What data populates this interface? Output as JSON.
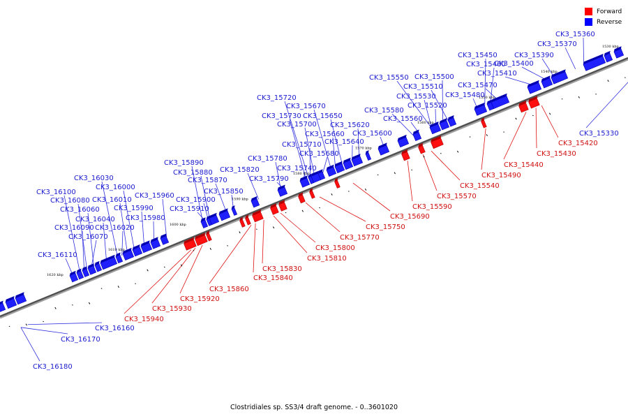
{
  "legend": {
    "forward_label": "Forward",
    "reverse_label": "Reverse",
    "forward_color": "#ff0000",
    "reverse_color": "#0000ff"
  },
  "caption": "Clostridiales sp. SS3/4 draft genome. - 0..3601020",
  "axis_units": "kbp",
  "axis_range_kbp": [
    1530,
    1620
  ],
  "axis_ticks": [
    "1530 kbp",
    "1540 kbp",
    "1550 kbp",
    "1560 kbp",
    "1570 kbp",
    "1580 kbp",
    "1590 kbp",
    "1600 kbp",
    "1610 kbp",
    "1620 kbp"
  ],
  "reverse_genes": [
    "CK3_15360",
    "CK3_15370",
    "CK3_15390",
    "CK3_15400",
    "CK3_15410",
    "CK3_15450",
    "CK3_15460",
    "CK3_15470",
    "CK3_15480",
    "CK3_15500",
    "CK3_15510",
    "CK3_15520",
    "CK3_15530",
    "CK3_15550",
    "CK3_15560",
    "CK3_15580",
    "CK3_15600",
    "CK3_15620",
    "CK3_15640",
    "CK3_15650",
    "CK3_15660",
    "CK3_15670",
    "CK3_15680",
    "CK3_15700",
    "CK3_15710",
    "CK3_15720",
    "CK3_15730",
    "CK3_15740",
    "CK3_15780",
    "CK3_15790",
    "CK3_15820",
    "CK3_15850",
    "CK3_15870",
    "CK3_15880",
    "CK3_15890",
    "CK3_15900",
    "CK3_15910",
    "CK3_15960",
    "CK3_15980",
    "CK3_15990",
    "CK3_16000",
    "CK3_16010",
    "CK3_16020",
    "CK3_16030",
    "CK3_16040",
    "CK3_16060",
    "CK3_16070",
    "CK3_16080",
    "CK3_16090",
    "CK3_16100",
    "CK3_16110",
    "CK3_15330",
    "CK3_16160",
    "CK3_16170",
    "CK3_16180"
  ],
  "forward_genes": [
    "CK3_15420",
    "CK3_15430",
    "CK3_15440",
    "CK3_15490",
    "CK3_15540",
    "CK3_15570",
    "CK3_15590",
    "CK3_15690",
    "CK3_15750",
    "CK3_15770",
    "CK3_15800",
    "CK3_15810",
    "CK3_15830",
    "CK3_15840",
    "CK3_15860",
    "CK3_15920",
    "CK3_15930",
    "CK3_15940"
  ]
}
